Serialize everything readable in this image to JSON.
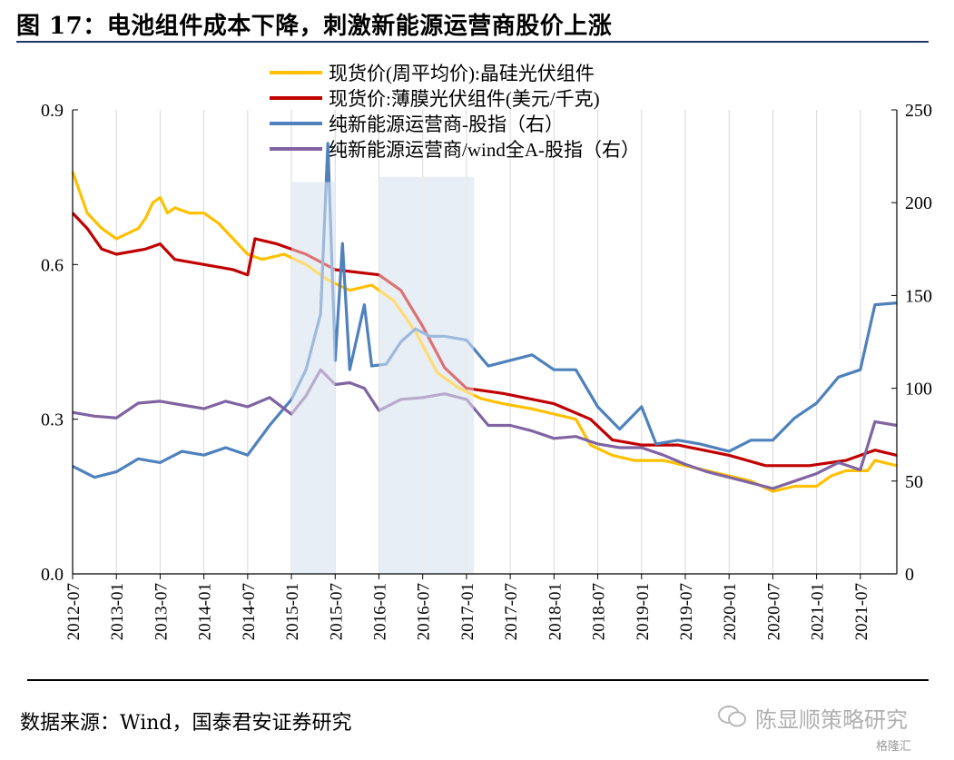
{
  "figure": {
    "title": "图 17：电池组件成本下降，刺激新能源运营商股价上涨",
    "source": "数据来源：Wind，国泰君安证券研究",
    "watermark": "陈显顺策略研究",
    "watermark2": "格隆汇"
  },
  "colors": {
    "yellow": "#FFC000",
    "red": "#C00000",
    "blue": "#4F81BD",
    "purple": "#8064A2",
    "shade": "#D5E0EE",
    "grid": "#D9D9D9"
  },
  "chart_data": {
    "type": "line",
    "x_ticks": [
      "2012-07",
      "2013-01",
      "2013-07",
      "2014-01",
      "2014-07",
      "2015-01",
      "2015-07",
      "2016-01",
      "2016-07",
      "2017-01",
      "2017-07",
      "2018-01",
      "2018-07",
      "2019-01",
      "2019-07",
      "2020-01",
      "2020-07",
      "2021-01",
      "2021-07"
    ],
    "x_range": [
      "2012-07",
      "2021-12"
    ],
    "y_left": {
      "ticks": [
        "0.0",
        "0.3",
        "0.6",
        "0.9"
      ],
      "range": [
        0,
        0.9
      ]
    },
    "y_right": {
      "ticks": [
        "0",
        "50",
        "100",
        "150",
        "200",
        "250"
      ],
      "range": [
        0,
        250
      ]
    },
    "grid": "vertical",
    "legend_position": "top-left",
    "shaded_periods": [
      {
        "start": "2015-01",
        "end": "2015-07",
        "top": 0.76
      },
      {
        "start": "2016-01",
        "end": "2017-02",
        "top": 0.77
      }
    ],
    "series": [
      {
        "name": "现货价(周平均价):晶硅光伏组件",
        "axis": "left",
        "color_key": "yellow",
        "points": [
          [
            "2012-07",
            0.78
          ],
          [
            "2012-09",
            0.7
          ],
          [
            "2012-11",
            0.67
          ],
          [
            "2013-01",
            0.65
          ],
          [
            "2013-04",
            0.67
          ],
          [
            "2013-05",
            0.69
          ],
          [
            "2013-06",
            0.72
          ],
          [
            "2013-07",
            0.73
          ],
          [
            "2013-08",
            0.7
          ],
          [
            "2013-09",
            0.71
          ],
          [
            "2013-11",
            0.7
          ],
          [
            "2014-01",
            0.7
          ],
          [
            "2014-03",
            0.68
          ],
          [
            "2014-05",
            0.65
          ],
          [
            "2014-07",
            0.62
          ],
          [
            "2014-09",
            0.61
          ],
          [
            "2014-12",
            0.62
          ],
          [
            "2015-03",
            0.6
          ],
          [
            "2015-06",
            0.57
          ],
          [
            "2015-09",
            0.55
          ],
          [
            "2015-12",
            0.56
          ],
          [
            "2016-03",
            0.53
          ],
          [
            "2016-06",
            0.47
          ],
          [
            "2016-09",
            0.39
          ],
          [
            "2016-12",
            0.36
          ],
          [
            "2017-03",
            0.34
          ],
          [
            "2017-06",
            0.33
          ],
          [
            "2017-10",
            0.32
          ],
          [
            "2018-01",
            0.31
          ],
          [
            "2018-04",
            0.3
          ],
          [
            "2018-06",
            0.25
          ],
          [
            "2018-09",
            0.23
          ],
          [
            "2018-12",
            0.22
          ],
          [
            "2019-04",
            0.22
          ],
          [
            "2019-07",
            0.21
          ],
          [
            "2019-10",
            0.2
          ],
          [
            "2020-01",
            0.19
          ],
          [
            "2020-04",
            0.18
          ],
          [
            "2020-07",
            0.16
          ],
          [
            "2020-10",
            0.17
          ],
          [
            "2021-01",
            0.17
          ],
          [
            "2021-03",
            0.19
          ],
          [
            "2021-05",
            0.2
          ],
          [
            "2021-08",
            0.2
          ],
          [
            "2021-09",
            0.22
          ],
          [
            "2021-12",
            0.21
          ]
        ]
      },
      {
        "name": "现货价:薄膜光伏组件(美元/千克)",
        "axis": "left",
        "color_key": "red",
        "points": [
          [
            "2012-07",
            0.7
          ],
          [
            "2012-09",
            0.67
          ],
          [
            "2012-11",
            0.63
          ],
          [
            "2013-01",
            0.62
          ],
          [
            "2013-05",
            0.63
          ],
          [
            "2013-07",
            0.64
          ],
          [
            "2013-09",
            0.61
          ],
          [
            "2014-01",
            0.6
          ],
          [
            "2014-05",
            0.59
          ],
          [
            "2014-07",
            0.58
          ],
          [
            "2014-08",
            0.65
          ],
          [
            "2014-11",
            0.64
          ],
          [
            "2015-03",
            0.62
          ],
          [
            "2015-07",
            0.59
          ],
          [
            "2016-01",
            0.58
          ],
          [
            "2016-04",
            0.55
          ],
          [
            "2016-07",
            0.48
          ],
          [
            "2016-10",
            0.4
          ],
          [
            "2017-01",
            0.36
          ],
          [
            "2017-06",
            0.35
          ],
          [
            "2018-01",
            0.33
          ],
          [
            "2018-06",
            0.3
          ],
          [
            "2018-09",
            0.26
          ],
          [
            "2019-01",
            0.25
          ],
          [
            "2019-06",
            0.25
          ],
          [
            "2020-01",
            0.23
          ],
          [
            "2020-06",
            0.21
          ],
          [
            "2020-12",
            0.21
          ],
          [
            "2021-05",
            0.22
          ],
          [
            "2021-09",
            0.24
          ],
          [
            "2021-12",
            0.23
          ]
        ]
      },
      {
        "name": "纯新能源运营商-股指（右）",
        "axis": "right",
        "color_key": "blue",
        "points": [
          [
            "2012-07",
            58
          ],
          [
            "2012-10",
            52
          ],
          [
            "2013-01",
            55
          ],
          [
            "2013-04",
            62
          ],
          [
            "2013-07",
            60
          ],
          [
            "2013-10",
            66
          ],
          [
            "2014-01",
            64
          ],
          [
            "2014-04",
            68
          ],
          [
            "2014-07",
            64
          ],
          [
            "2014-10",
            80
          ],
          [
            "2015-01",
            94
          ],
          [
            "2015-03",
            110
          ],
          [
            "2015-05",
            140
          ],
          [
            "2015-06",
            232
          ],
          [
            "2015-07",
            115
          ],
          [
            "2015-08",
            178
          ],
          [
            "2015-09",
            110
          ],
          [
            "2015-11",
            145
          ],
          [
            "2015-12",
            112
          ],
          [
            "2016-02",
            113
          ],
          [
            "2016-04",
            125
          ],
          [
            "2016-06",
            132
          ],
          [
            "2016-08",
            128
          ],
          [
            "2016-10",
            128
          ],
          [
            "2017-01",
            126
          ],
          [
            "2017-04",
            112
          ],
          [
            "2017-07",
            115
          ],
          [
            "2017-10",
            118
          ],
          [
            "2018-01",
            110
          ],
          [
            "2018-04",
            110
          ],
          [
            "2018-07",
            90
          ],
          [
            "2018-10",
            78
          ],
          [
            "2019-01",
            90
          ],
          [
            "2019-03",
            70
          ],
          [
            "2019-06",
            72
          ],
          [
            "2019-09",
            70
          ],
          [
            "2020-01",
            66
          ],
          [
            "2020-04",
            72
          ],
          [
            "2020-07",
            72
          ],
          [
            "2020-10",
            84
          ],
          [
            "2021-01",
            92
          ],
          [
            "2021-04",
            106
          ],
          [
            "2021-07",
            110
          ],
          [
            "2021-09",
            145
          ],
          [
            "2021-12",
            146
          ]
        ]
      },
      {
        "name": "纯新能源运营商/wind全A-股指（右）",
        "axis": "right",
        "color_key": "purple",
        "points": [
          [
            "2012-07",
            87
          ],
          [
            "2012-10",
            85
          ],
          [
            "2013-01",
            84
          ],
          [
            "2013-04",
            92
          ],
          [
            "2013-07",
            93
          ],
          [
            "2013-10",
            91
          ],
          [
            "2014-01",
            89
          ],
          [
            "2014-04",
            93
          ],
          [
            "2014-07",
            90
          ],
          [
            "2014-10",
            95
          ],
          [
            "2015-01",
            86
          ],
          [
            "2015-03",
            96
          ],
          [
            "2015-05",
            110
          ],
          [
            "2015-07",
            102
          ],
          [
            "2015-09",
            103
          ],
          [
            "2015-11",
            100
          ],
          [
            "2016-01",
            88
          ],
          [
            "2016-04",
            94
          ],
          [
            "2016-07",
            95
          ],
          [
            "2016-10",
            97
          ],
          [
            "2017-01",
            94
          ],
          [
            "2017-04",
            80
          ],
          [
            "2017-07",
            80
          ],
          [
            "2017-10",
            77
          ],
          [
            "2018-01",
            73
          ],
          [
            "2018-04",
            74
          ],
          [
            "2018-07",
            70
          ],
          [
            "2018-10",
            68
          ],
          [
            "2019-01",
            68
          ],
          [
            "2019-04",
            64
          ],
          [
            "2019-07",
            59
          ],
          [
            "2019-10",
            55
          ],
          [
            "2020-01",
            52
          ],
          [
            "2020-04",
            49
          ],
          [
            "2020-07",
            46
          ],
          [
            "2020-10",
            50
          ],
          [
            "2021-01",
            54
          ],
          [
            "2021-04",
            60
          ],
          [
            "2021-07",
            56
          ],
          [
            "2021-09",
            82
          ],
          [
            "2021-12",
            80
          ]
        ]
      }
    ]
  }
}
